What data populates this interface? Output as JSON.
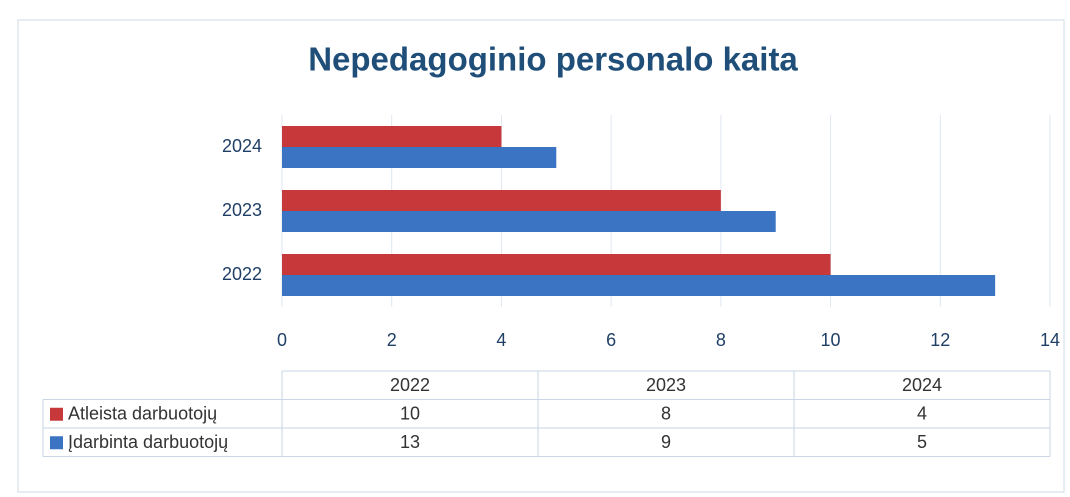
{
  "chart_data": {
    "type": "bar",
    "orientation": "horizontal",
    "title": "Nepedagoginio personalo kaita",
    "categories": [
      "2022",
      "2023",
      "2024"
    ],
    "series": [
      {
        "name": "Atleista darbuotojų",
        "color": "#c7383a",
        "values": [
          10,
          8,
          4
        ]
      },
      {
        "name": "Įdarbinta darbuotojų",
        "color": "#3a74c2",
        "values": [
          13,
          9,
          5
        ]
      }
    ],
    "xlim": [
      0,
      14
    ],
    "xticks": [
      0,
      2,
      4,
      6,
      8,
      10,
      12,
      14
    ],
    "grid": true,
    "data_table": true
  }
}
